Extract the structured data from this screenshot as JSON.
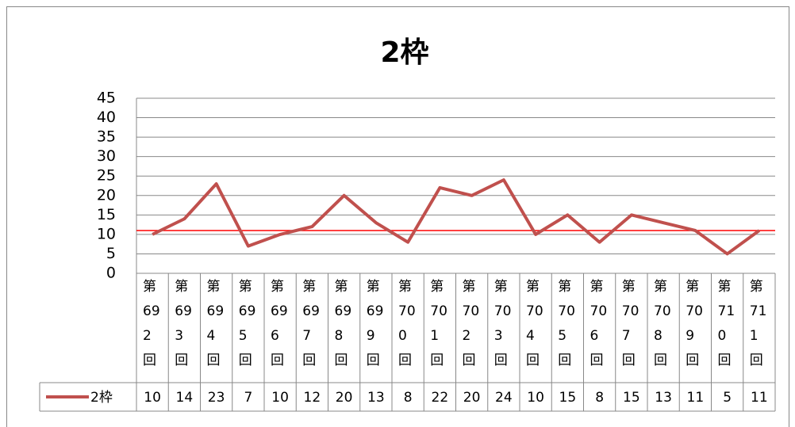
{
  "chart_data": {
    "type": "line",
    "title": "2枠",
    "categories": [
      "第692回",
      "第693回",
      "第694回",
      "第695回",
      "第696回",
      "第697回",
      "第698回",
      "第699回",
      "第700回",
      "第701回",
      "第702回",
      "第703回",
      "第704回",
      "第705回",
      "第706回",
      "第707回",
      "第708回",
      "第709回",
      "第710回",
      "第711回"
    ],
    "series": [
      {
        "name": "2枠",
        "color": "#c0504d",
        "values": [
          10,
          14,
          23,
          7,
          10,
          12,
          20,
          13,
          8,
          22,
          20,
          24,
          10,
          15,
          8,
          15,
          13,
          11,
          5,
          11
        ]
      }
    ],
    "ylim": [
      0,
      45
    ],
    "yticks": [
      0,
      5,
      10,
      15,
      20,
      25,
      30,
      35,
      40,
      45
    ],
    "grid": true,
    "reference_line": {
      "value": 11,
      "color": "#ff0000"
    }
  }
}
